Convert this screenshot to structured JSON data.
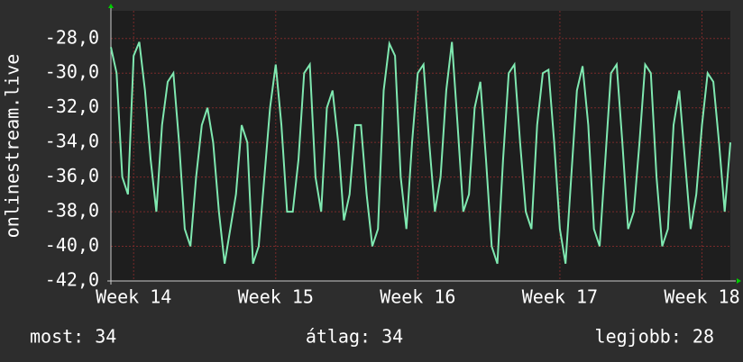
{
  "chart_data": {
    "type": "line",
    "ylabel": "onlinestream.live",
    "color": "#7fe8b0",
    "grid": true,
    "xlim": [
      13.84,
      18.2
    ],
    "xticks": [
      {
        "value": 14,
        "label": "Week 14"
      },
      {
        "value": 15,
        "label": "Week 15"
      },
      {
        "value": 16,
        "label": "Week 16"
      },
      {
        "value": 17,
        "label": "Week 17"
      },
      {
        "value": 18,
        "label": "Week 18"
      }
    ],
    "ylim": [
      -42,
      -26.4
    ],
    "yticks": [
      {
        "value": -42,
        "label": "-42,0"
      },
      {
        "value": -40,
        "label": "-40,0"
      },
      {
        "value": -38,
        "label": "-38,0"
      },
      {
        "value": -36,
        "label": "-36,0"
      },
      {
        "value": -34,
        "label": "-34,0"
      },
      {
        "value": -32,
        "label": "-32,0"
      },
      {
        "value": -30,
        "label": "-30,0"
      },
      {
        "value": -28,
        "label": "-28,0"
      }
    ],
    "x": [
      13.84,
      13.88,
      13.92,
      13.96,
      14,
      14.04,
      14.08,
      14.12,
      14.16,
      14.2,
      14.24,
      14.28,
      14.32,
      14.36,
      14.4,
      14.44,
      14.48,
      14.52,
      14.56,
      14.6,
      14.64,
      14.68,
      14.72,
      14.76,
      14.8,
      14.84,
      14.88,
      14.92,
      14.96,
      15,
      15.04,
      15.08,
      15.12,
      15.16,
      15.2,
      15.24,
      15.28,
      15.32,
      15.36,
      15.4,
      15.44,
      15.48,
      15.52,
      15.56,
      15.6,
      15.64,
      15.68,
      15.72,
      15.76,
      15.8,
      15.84,
      15.88,
      15.92,
      15.96,
      16,
      16.04,
      16.08,
      16.12,
      16.16,
      16.2,
      16.24,
      16.28,
      16.32,
      16.36,
      16.4,
      16.44,
      16.48,
      16.52,
      16.56,
      16.6,
      16.64,
      16.68,
      16.72,
      16.76,
      16.8,
      16.84,
      16.88,
      16.92,
      16.96,
      17,
      17.04,
      17.08,
      17.12,
      17.16,
      17.2,
      17.24,
      17.28,
      17.32,
      17.36,
      17.4,
      17.44,
      17.48,
      17.52,
      17.56,
      17.6,
      17.64,
      17.68,
      17.72,
      17.76,
      17.8,
      17.84,
      17.88,
      17.92,
      17.96,
      18,
      18.04,
      18.08,
      18.12,
      18.16,
      18.2
    ],
    "values": [
      -28.5,
      -30,
      -36,
      -37,
      -29,
      -28.2,
      -31,
      -35,
      -38,
      -33,
      -30.5,
      -30,
      -34,
      -39,
      -40,
      -36,
      -33,
      -32,
      -34,
      -38,
      -41,
      -39,
      -37,
      -33,
      -34,
      -41,
      -40,
      -36,
      -32,
      -29.5,
      -33,
      -38,
      -38,
      -35,
      -30,
      -29.5,
      -36,
      -38,
      -32,
      -31,
      -34,
      -38.5,
      -37,
      -33,
      -33,
      -37,
      -40,
      -39,
      -31,
      -28.3,
      -29,
      -36,
      -39,
      -34,
      -30,
      -29.5,
      -34,
      -38,
      -36,
      -31,
      -28.2,
      -33,
      -38,
      -37,
      -32,
      -30.5,
      -35,
      -40,
      -41,
      -35,
      -30,
      -29.5,
      -34,
      -38,
      -39,
      -33,
      -30,
      -29.8,
      -34,
      -39,
      -41,
      -36,
      -31,
      -29.6,
      -33,
      -39,
      -40,
      -35,
      -30,
      -29.5,
      -34,
      -39,
      -38,
      -34,
      -29.5,
      -30,
      -36,
      -40,
      -39,
      -33,
      -31,
      -35,
      -39,
      -37,
      -33,
      -30,
      -30.5,
      -34,
      -38,
      -34
    ],
    "stats": [
      "most: 34",
      "átlag: 34",
      "legjobb: 28"
    ]
  }
}
